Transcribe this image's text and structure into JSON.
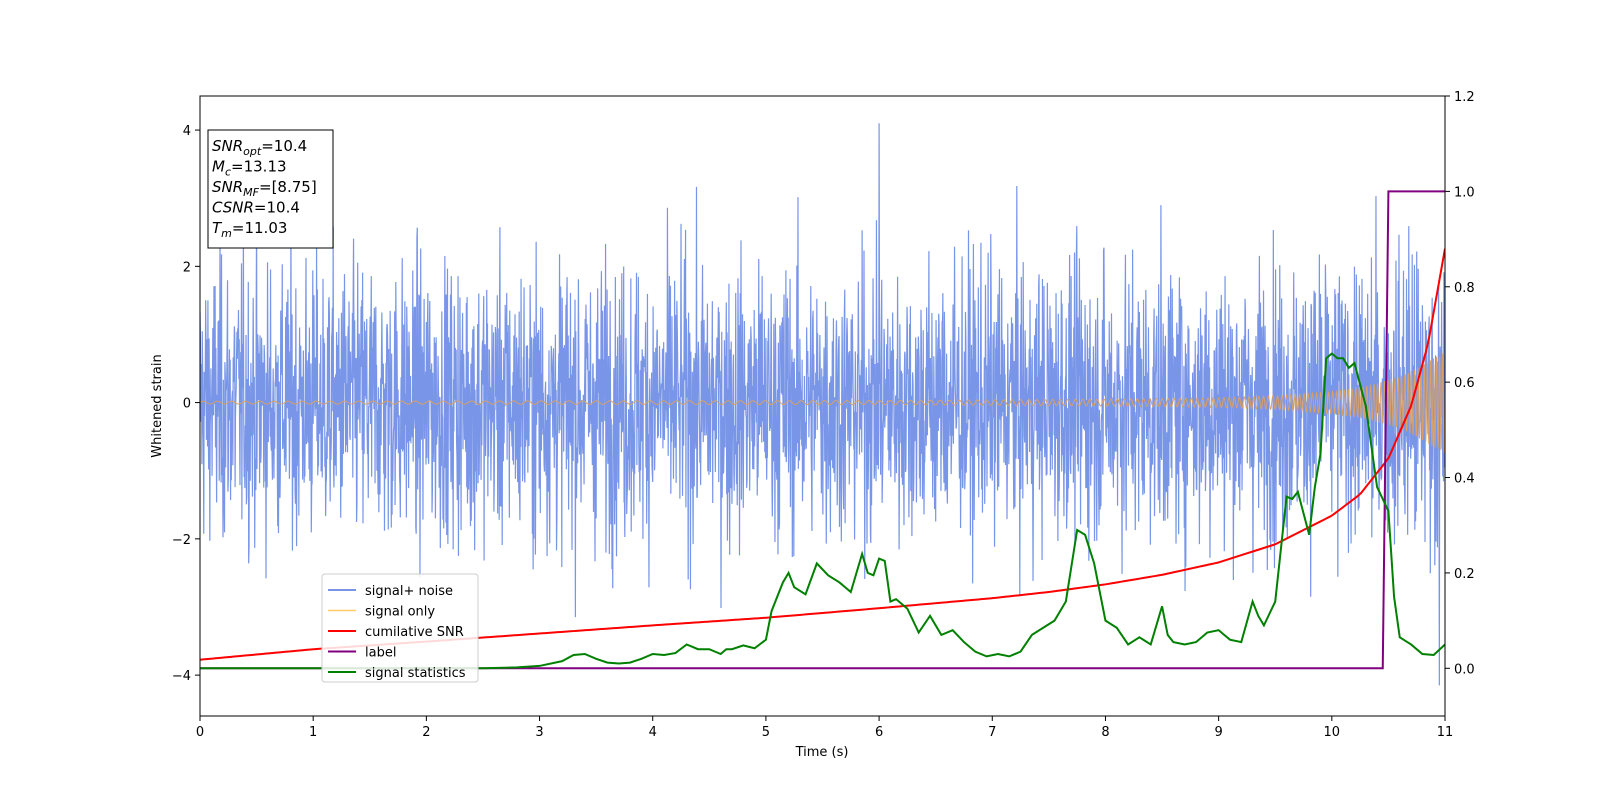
{
  "chart_data": {
    "type": "line",
    "xlabel": "Time (s)",
    "ylabel": "Whitened strain",
    "xlim": [
      0,
      11
    ],
    "ylim_left": [
      -4.6,
      4.5
    ],
    "ylim_right": [
      -0.1,
      1.2
    ],
    "x_ticks": [
      0,
      1,
      2,
      3,
      4,
      5,
      6,
      7,
      8,
      9,
      10,
      11
    ],
    "y_ticks_left": [
      -4,
      -2,
      0,
      2,
      4
    ],
    "y_ticks_right": [
      0.0,
      0.2,
      0.4,
      0.6,
      0.8,
      1.0,
      1.2
    ],
    "grid": false,
    "legend_position": "lower-left",
    "annotation_lines": [
      {
        "base": "SNR",
        "sub": "opt",
        "rest": "=10.4"
      },
      {
        "base": "M",
        "sub": "c",
        "rest": "=13.13"
      },
      {
        "base": "SNR",
        "sub": "MF",
        "rest": "=[8.75]"
      },
      {
        "base": "CSNR",
        "sub": "",
        "rest": "=10.4"
      },
      {
        "base": "T",
        "sub": "m",
        "rest": "=11.03"
      }
    ],
    "series": [
      {
        "name": "signal+ noise",
        "axis": "left",
        "color": "#7895e8",
        "description_values": {
          "noise_std": 1.0,
          "spike_max": 4.1,
          "spike_time": 6.0,
          "spike_min": -4.15,
          "spike_min_time": 10.95
        }
      },
      {
        "name": "signal only",
        "axis": "left",
        "color": "#ffc966",
        "envelope": {
          "t": [
            0,
            6,
            8,
            9,
            9.5,
            10,
            10.3,
            10.6,
            10.8,
            11.0
          ],
          "amp": [
            0.02,
            0.03,
            0.05,
            0.07,
            0.1,
            0.16,
            0.24,
            0.38,
            0.55,
            0.75
          ]
        }
      },
      {
        "name": "cumilative SNR",
        "axis": "right",
        "color": "#ff0000",
        "x": [
          0,
          1,
          2,
          3,
          4,
          5,
          6,
          7,
          7.5,
          8,
          8.5,
          9,
          9.5,
          10,
          10.25,
          10.5,
          10.7,
          10.85,
          11.0
        ],
        "y": [
          0.018,
          0.04,
          0.056,
          0.073,
          0.09,
          0.106,
          0.126,
          0.147,
          0.16,
          0.176,
          0.196,
          0.222,
          0.26,
          0.32,
          0.365,
          0.44,
          0.55,
          0.68,
          0.88
        ]
      },
      {
        "name": "label",
        "axis": "right",
        "color": "#800080",
        "x": [
          0,
          10.45,
          10.5,
          11.0
        ],
        "y": [
          0,
          0,
          1,
          1
        ]
      },
      {
        "name": "signal statistics",
        "axis": "right",
        "color": "#008000",
        "x": [
          0,
          0.5,
          1,
          1.5,
          2,
          2.5,
          2.8,
          3,
          3.2,
          3.3,
          3.4,
          3.5,
          3.6,
          3.7,
          3.8,
          3.9,
          4.0,
          4.1,
          4.2,
          4.3,
          4.35,
          4.4,
          4.5,
          4.6,
          4.65,
          4.7,
          4.8,
          4.9,
          5.0,
          5.05,
          5.1,
          5.15,
          5.2,
          5.25,
          5.35,
          5.45,
          5.55,
          5.65,
          5.75,
          5.85,
          5.9,
          5.95,
          6.0,
          6.05,
          6.1,
          6.15,
          6.25,
          6.35,
          6.45,
          6.55,
          6.65,
          6.75,
          6.85,
          6.95,
          7.05,
          7.15,
          7.25,
          7.35,
          7.45,
          7.55,
          7.65,
          7.75,
          7.82,
          7.9,
          8.0,
          8.1,
          8.2,
          8.3,
          8.4,
          8.5,
          8.55,
          8.6,
          8.7,
          8.8,
          8.9,
          9.0,
          9.1,
          9.2,
          9.3,
          9.35,
          9.4,
          9.5,
          9.6,
          9.65,
          9.7,
          9.8,
          9.85,
          9.9,
          9.95,
          10.0,
          10.05,
          10.1,
          10.15,
          10.2,
          10.3,
          10.4,
          10.5,
          10.55,
          10.6,
          10.7,
          10.8,
          10.9,
          11.0
        ],
        "y": [
          0,
          0,
          0,
          0,
          0,
          0,
          0.002,
          0.005,
          0.015,
          0.028,
          0.03,
          0.02,
          0.012,
          0.01,
          0.012,
          0.02,
          0.03,
          0.028,
          0.032,
          0.05,
          0.045,
          0.04,
          0.04,
          0.03,
          0.04,
          0.04,
          0.048,
          0.042,
          0.06,
          0.12,
          0.15,
          0.18,
          0.2,
          0.17,
          0.155,
          0.22,
          0.195,
          0.18,
          0.16,
          0.24,
          0.2,
          0.195,
          0.23,
          0.225,
          0.14,
          0.145,
          0.125,
          0.075,
          0.11,
          0.07,
          0.08,
          0.055,
          0.035,
          0.025,
          0.03,
          0.025,
          0.035,
          0.07,
          0.085,
          0.1,
          0.14,
          0.29,
          0.28,
          0.22,
          0.1,
          0.085,
          0.05,
          0.065,
          0.05,
          0.13,
          0.07,
          0.055,
          0.05,
          0.055,
          0.075,
          0.08,
          0.06,
          0.055,
          0.14,
          0.11,
          0.09,
          0.14,
          0.36,
          0.355,
          0.37,
          0.28,
          0.38,
          0.45,
          0.65,
          0.66,
          0.65,
          0.65,
          0.63,
          0.64,
          0.55,
          0.38,
          0.33,
          0.15,
          0.065,
          0.05,
          0.03,
          0.028,
          0.05
        ]
      }
    ]
  }
}
